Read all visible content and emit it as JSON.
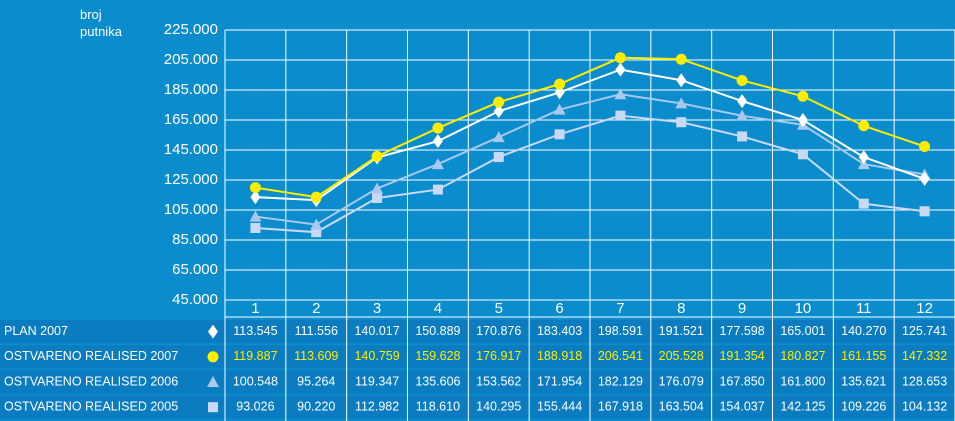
{
  "chart_data": {
    "type": "line",
    "y_label": "broj putnika",
    "categories": [
      "1",
      "2",
      "3",
      "4",
      "5",
      "6",
      "7",
      "8",
      "9",
      "10",
      "11",
      "12"
    ],
    "ylim": [
      45000,
      225000
    ],
    "yticks": [
      {
        "value": 225000,
        "label": "225.000"
      },
      {
        "value": 205000,
        "label": "205.000"
      },
      {
        "value": 185000,
        "label": "185.000"
      },
      {
        "value": 165000,
        "label": "165.000"
      },
      {
        "value": 145000,
        "label": "145.000"
      },
      {
        "value": 125000,
        "label": "125.000"
      },
      {
        "value": 105000,
        "label": "105.000"
      },
      {
        "value": 85000,
        "label": "85.000"
      },
      {
        "value": 65000,
        "label": "65.000"
      },
      {
        "value": 45000,
        "label": "45.000"
      }
    ],
    "grid": true,
    "series": [
      {
        "name": "PLAN 2007",
        "color": "#ffffff",
        "marker": "diamond",
        "values": [
          113545,
          111556,
          140017,
          150889,
          170876,
          183403,
          198591,
          191521,
          177598,
          165001,
          140270,
          125741
        ],
        "value_labels": [
          "113.545",
          "111.556",
          "140.017",
          "150.889",
          "170.876",
          "183.403",
          "198.591",
          "191.521",
          "177.598",
          "165.001",
          "140.270",
          "125.741"
        ]
      },
      {
        "name": "OSTVARENO REALISED 2007",
        "color": "#ffed00",
        "marker": "circle",
        "values": [
          119887,
          113609,
          140759,
          159628,
          176917,
          188918,
          206541,
          205528,
          191354,
          180827,
          161155,
          147332
        ],
        "value_labels": [
          "119.887",
          "113.609",
          "140.759",
          "159.628",
          "176.917",
          "188.918",
          "206.541",
          "205.528",
          "191.354",
          "180.827",
          "161.155",
          "147.332"
        ]
      },
      {
        "name": "OSTVARENO REALISED 2006",
        "color": "#a9c8ee",
        "marker": "triangle",
        "values": [
          100548,
          95264,
          119347,
          135606,
          153562,
          171954,
          182129,
          176079,
          167850,
          161800,
          135621,
          128653
        ],
        "value_labels": [
          "100.548",
          "95.264",
          "119.347",
          "135.606",
          "153.562",
          "171.954",
          "182.129",
          "176.079",
          "167.850",
          "161.800",
          "135.621",
          "128.653"
        ]
      },
      {
        "name": "OSTVARENO REALISED 2005",
        "color": "#c9d9f3",
        "marker": "square",
        "values": [
          93026,
          90220,
          112982,
          118610,
          140295,
          155444,
          167918,
          163504,
          154037,
          142125,
          109226,
          104132
        ],
        "value_labels": [
          "93.026",
          "90.220",
          "112.982",
          "118.610",
          "140.295",
          "155.444",
          "167.918",
          "163.504",
          "154.037",
          "142.125",
          "109.226",
          "104.132"
        ]
      }
    ]
  }
}
